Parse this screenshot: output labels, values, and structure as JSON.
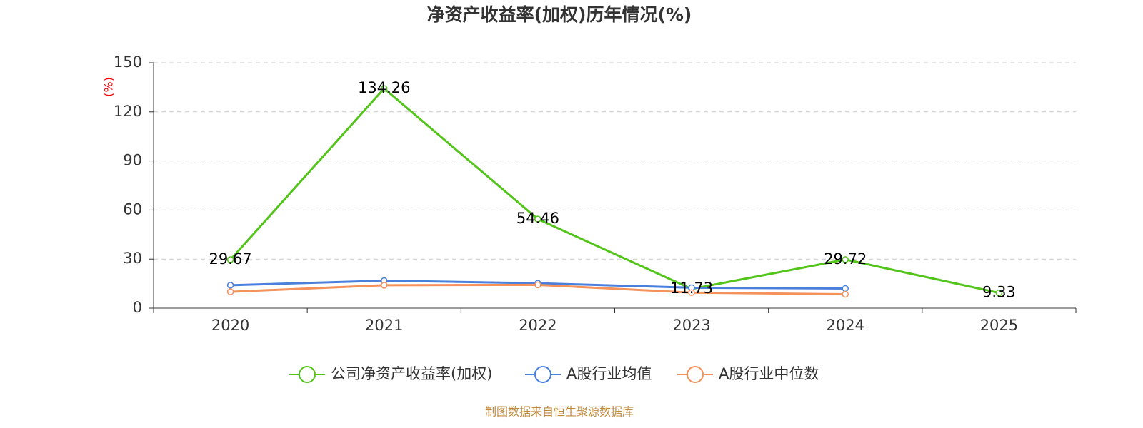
{
  "chart_data": {
    "type": "line",
    "title": "净资产收益率(加权)历年情况(%)",
    "y_label": "(%)",
    "categories": [
      "2020",
      "2021",
      "2022",
      "2023",
      "2024",
      "2025"
    ],
    "series": [
      {
        "name": "公司净资产收益率(加权)",
        "color": "#52c41a",
        "values": [
          29.67,
          134.26,
          54.46,
          11.73,
          29.72,
          9.33
        ],
        "labels": true
      },
      {
        "name": "A股行业均值",
        "color": "#4a7fdc",
        "values": [
          14.0,
          16.8,
          15.2,
          12.5,
          12.0,
          null
        ]
      },
      {
        "name": "A股行业中位数",
        "color": "#f5915a",
        "values": [
          10.0,
          14.0,
          14.2,
          9.5,
          8.5,
          null
        ]
      }
    ],
    "ylim": [
      0,
      150
    ],
    "yticks": [
      0,
      30,
      60,
      90,
      120,
      150
    ],
    "grid": true,
    "legend": "bottom",
    "source": "制图数据来自恒生聚源数据库"
  }
}
